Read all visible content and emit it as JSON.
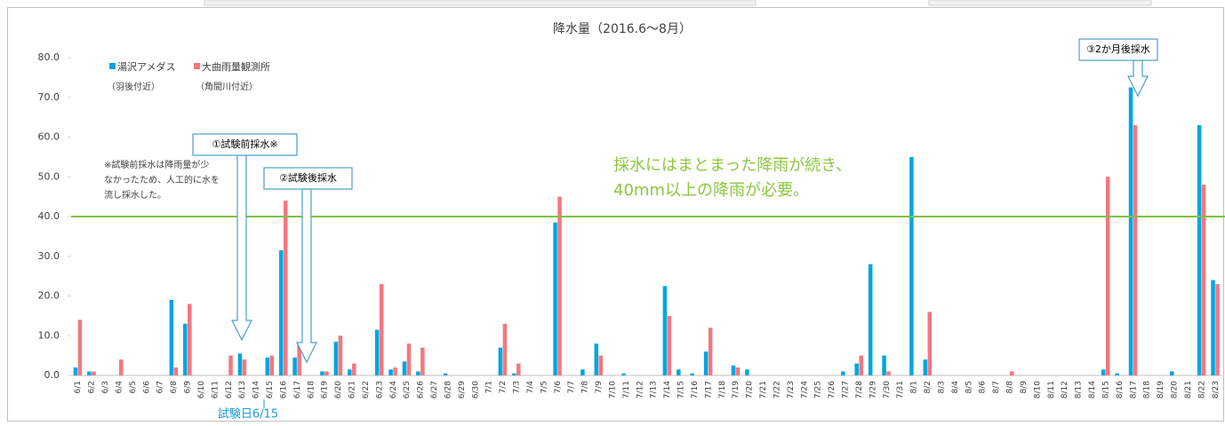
{
  "chart_data": {
    "type": "bar",
    "title": "降水量（2016.6〜8月）",
    "categories": [
      "6/1",
      "6/2",
      "6/3",
      "6/4",
      "6/5",
      "6/6",
      "6/7",
      "6/8",
      "6/9",
      "6/10",
      "6/11",
      "6/12",
      "6/13",
      "6/14",
      "6/15",
      "6/16",
      "6/17",
      "6/18",
      "6/19",
      "6/20",
      "6/21",
      "6/22",
      "6/23",
      "6/24",
      "6/25",
      "6/26",
      "6/27",
      "6/28",
      "6/29",
      "6/30",
      "7/1",
      "7/2",
      "7/3",
      "7/4",
      "7/5",
      "7/6",
      "7/7",
      "7/8",
      "7/9",
      "7/10",
      "7/11",
      "7/12",
      "7/13",
      "7/14",
      "7/15",
      "7/16",
      "7/17",
      "7/18",
      "7/19",
      "7/20",
      "7/21",
      "7/22",
      "7/23",
      "7/24",
      "7/25",
      "7/26",
      "7/27",
      "7/28",
      "7/29",
      "7/30",
      "7/31",
      "8/1",
      "8/2",
      "8/3",
      "8/4",
      "8/5",
      "8/6",
      "8/7",
      "8/8",
      "8/9",
      "8/10",
      "8/11",
      "8/12",
      "8/13",
      "8/14",
      "8/15",
      "8/16",
      "8/17",
      "8/18",
      "8/19",
      "8/20",
      "8/21",
      "8/22",
      "8/23"
    ],
    "series": [
      {
        "name": "湯沢アメダス",
        "sublabel": "（羽後付近）",
        "color": "#00a6e0",
        "values": [
          2,
          1,
          0,
          0,
          0,
          0,
          0,
          19,
          13,
          0,
          0,
          0,
          5.5,
          0,
          4.5,
          31.5,
          4.5,
          0,
          1,
          8.5,
          1.5,
          0,
          11.5,
          1.5,
          3.5,
          1,
          0,
          0.5,
          0,
          0,
          0,
          7,
          0.5,
          0,
          0,
          38.5,
          0,
          1.5,
          8,
          0,
          0.5,
          0,
          0,
          22.5,
          1.5,
          0.5,
          6,
          0,
          2.5,
          1.5,
          0,
          0,
          0,
          0,
          0,
          0,
          1,
          3,
          28,
          5,
          0,
          55,
          4,
          0,
          0,
          0,
          0,
          0,
          0,
          0,
          0,
          0,
          0,
          0,
          0,
          1.5,
          0.5,
          72.5,
          0,
          0,
          1,
          0,
          63,
          24
        ]
      },
      {
        "name": "大曲雨量観測所",
        "sublabel": "（角間川付近）",
        "color": "#f4777f",
        "values": [
          14,
          1,
          0,
          4,
          0,
          0,
          0,
          2,
          18,
          0,
          0,
          5,
          4,
          0,
          5,
          44,
          8,
          0,
          1,
          10,
          3,
          0,
          23,
          2,
          8,
          7,
          0,
          0,
          0,
          0,
          0,
          13,
          3,
          0,
          0,
          45,
          0,
          0,
          5,
          0,
          0,
          0,
          0,
          15,
          0,
          0,
          12,
          0,
          2,
          0,
          0,
          0,
          0,
          0,
          0,
          0,
          0,
          5,
          0,
          1,
          0,
          0,
          16,
          0,
          0,
          0,
          0,
          0,
          1,
          0,
          0,
          0,
          0,
          0,
          0,
          50,
          0,
          63,
          0,
          0,
          0,
          0,
          48,
          23
        ]
      }
    ],
    "ylim": [
      0,
      80
    ],
    "yticks": [
      {
        "value": 0,
        "label": "0.0"
      },
      {
        "value": 10,
        "label": "10.0"
      },
      {
        "value": 20,
        "label": "20.0"
      },
      {
        "value": 30,
        "label": "30.0"
      },
      {
        "value": 40,
        "label": "40.0"
      },
      {
        "value": 50,
        "label": "50.0"
      },
      {
        "value": 60,
        "label": "60.0"
      },
      {
        "value": 70,
        "label": "70.0"
      },
      {
        "value": 80,
        "label": "80.0"
      }
    ],
    "threshold": 40,
    "threshold_color": "#7dc242",
    "annotations": {
      "callout1": "①試験前採水※",
      "callout2": "②試験後採水",
      "callout3": "③2か月後採水",
      "note": [
        "※試験前採水は降雨量が少",
        "なかったため、人工的に水を",
        "流し採水した。"
      ],
      "message": [
        "採水にはまとまった降雨が続き、",
        "40mm以上の降雨が必要。"
      ],
      "test_day": "試験日6/15"
    }
  }
}
